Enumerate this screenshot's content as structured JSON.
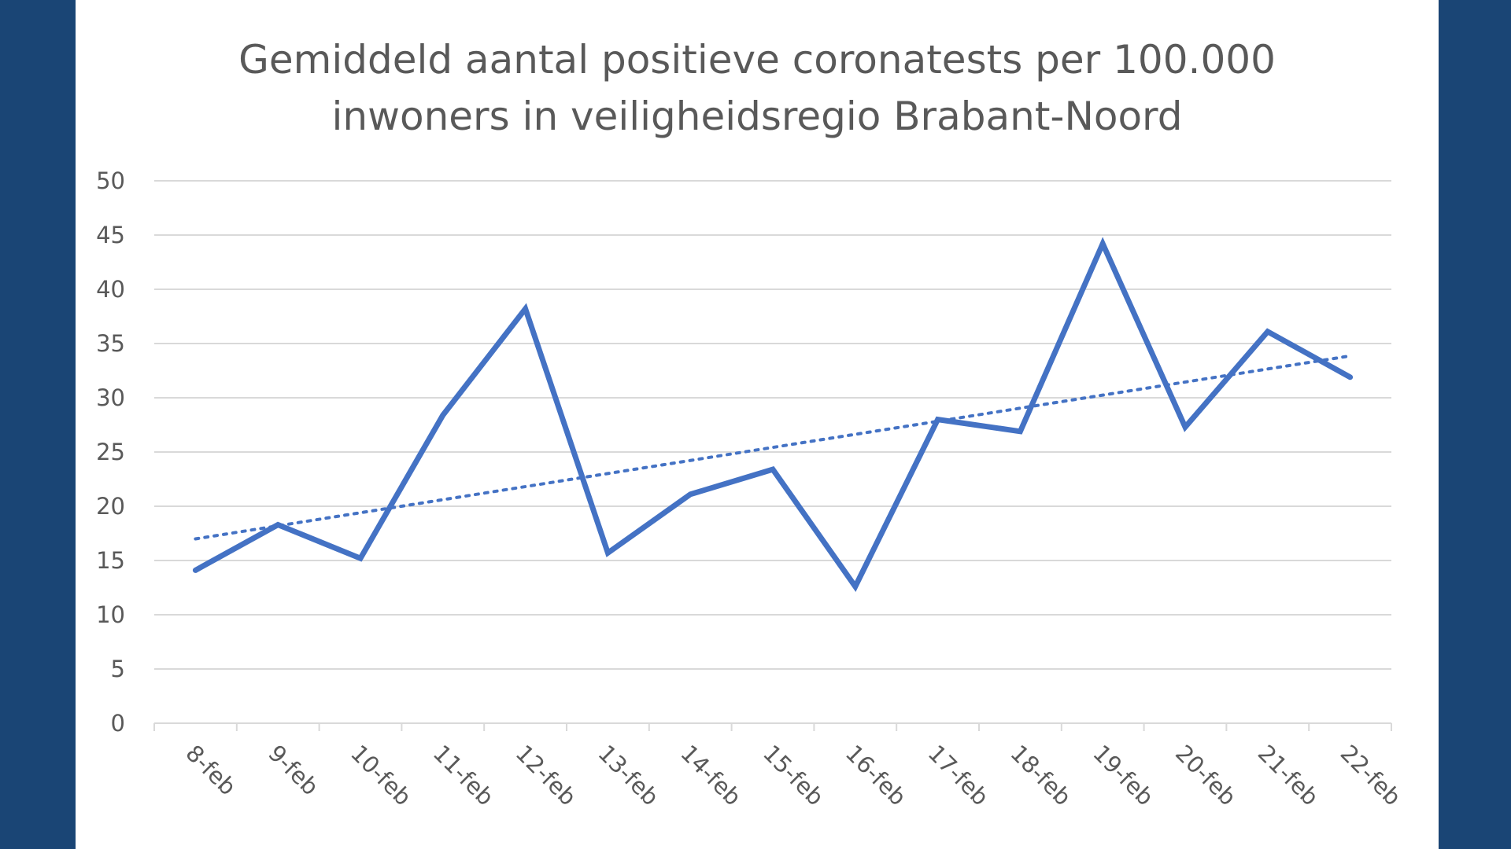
{
  "colors": {
    "background": "#1a4575",
    "panel": "#ffffff",
    "series": "#4472c4",
    "grid": "#d9d9d9",
    "text": "#595959"
  },
  "chart_data": {
    "type": "line",
    "title_lines": [
      "Gemiddeld aantal positieve coronatests per 100.000",
      "inwoners in veiligheidsregio Brabant-Noord"
    ],
    "xlabel": "",
    "ylabel": "",
    "categories": [
      "8-feb",
      "9-feb",
      "10-feb",
      "11-feb",
      "12-feb",
      "13-feb",
      "14-feb",
      "15-feb",
      "16-feb",
      "17-feb",
      "18-feb",
      "19-feb",
      "20-feb",
      "21-feb",
      "22-feb"
    ],
    "series": [
      {
        "values": [
          14.1,
          18.3,
          15.2,
          28.4,
          38.2,
          15.7,
          21.1,
          23.4,
          12.6,
          28.0,
          26.9,
          44.2,
          27.3,
          36.1,
          31.9
        ],
        "trendline": {
          "kind": "linear",
          "style": "dotted"
        }
      }
    ],
    "ylim": [
      0,
      50
    ],
    "yticks": [
      0,
      5,
      10,
      15,
      20,
      25,
      30,
      35,
      40,
      45,
      50
    ],
    "grid": true,
    "legend": "none"
  }
}
